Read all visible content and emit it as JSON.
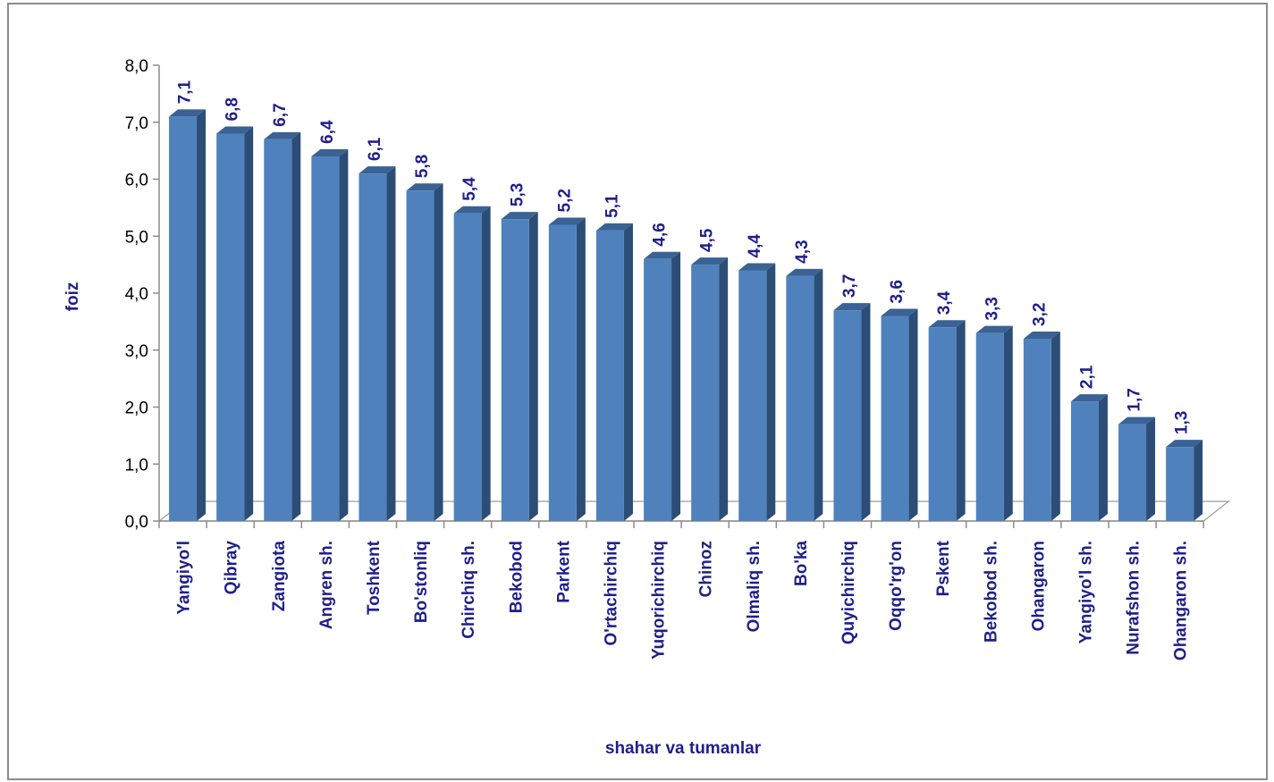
{
  "chart_data": {
    "type": "bar",
    "xlabel": "shahar va tumanlar",
    "ylabel": "foiz",
    "ylim": [
      0,
      8
    ],
    "y_ticks": [
      "0,0",
      "1,0",
      "2,0",
      "3,0",
      "4,0",
      "5,0",
      "6,0",
      "7,0",
      "8,0"
    ],
    "grid": false,
    "legend": "none",
    "categories": [
      "Yangiyo'l",
      "Qibray",
      "Zangiota",
      "Angren sh.",
      "Toshkent",
      "Bo'stonliq",
      "Chirchiq sh.",
      "Bekobod",
      "Parkent",
      "O'rtachirchiq",
      "Yuqorichirchiq",
      "Chinoz",
      "Olmaliq sh.",
      "Bo'ka",
      "Quyichirchiq",
      "Oqqo'rg'on",
      "Pskent",
      "Bekobod sh.",
      "Ohangaron",
      "Yangiyo'l sh.",
      "Nurafshon sh.",
      "Ohangaron sh."
    ],
    "values": [
      7.1,
      6.8,
      6.7,
      6.4,
      6.1,
      5.8,
      5.4,
      5.3,
      5.2,
      5.1,
      4.6,
      4.5,
      4.4,
      4.3,
      3.7,
      3.6,
      3.4,
      3.3,
      3.2,
      2.1,
      1.7,
      1.3
    ],
    "value_labels": [
      "7,1",
      "6,8",
      "6,7",
      "6,4",
      "6,1",
      "5,8",
      "5,4",
      "5,3",
      "5,2",
      "5,1",
      "4,6",
      "4,5",
      "4,4",
      "4,3",
      "3,7",
      "3,6",
      "3,4",
      "3,3",
      "3,2",
      "2,1",
      "1,7",
      "1,3"
    ],
    "colors": {
      "bar_front": "#4f81bd",
      "bar_side": "#2c4d75",
      "bar_top": "#3a6294",
      "label": "#1f1f8a"
    }
  }
}
